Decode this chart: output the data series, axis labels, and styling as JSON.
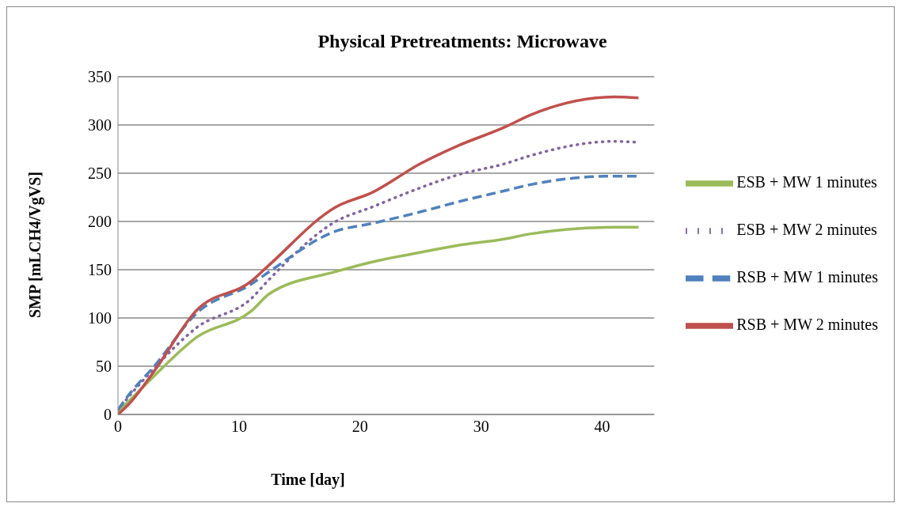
{
  "chart_data": {
    "type": "line",
    "title": "Physical Pretreatments: Microwave",
    "xlabel": "Time [day]",
    "ylabel": "SMP [mLCH4/VgVS]",
    "x": [
      0,
      1,
      3,
      6.5,
      11,
      12.5,
      18,
      21,
      25,
      28,
      32,
      34,
      41,
      43
    ],
    "series": [
      {
        "name": "ESB + MW 1 minutes",
        "color": "#9bbb59",
        "line_style": "solid",
        "values": [
          3,
          15,
          40,
          80,
          107,
          125,
          148,
          158,
          168,
          175,
          182,
          187,
          194,
          194
        ]
      },
      {
        "name": "ESB + MW 2 minutes",
        "color": "#8064a2",
        "line_style": "dotted",
        "values": [
          5,
          20,
          48,
          90,
          120,
          140,
          200,
          215,
          235,
          248,
          260,
          268,
          283,
          282
        ]
      },
      {
        "name": "RSB + MW 1 minutes",
        "color": "#4f81bd",
        "line_style": "dashed",
        "values": [
          5,
          22,
          50,
          105,
          135,
          148,
          190,
          198,
          210,
          220,
          232,
          238,
          247,
          247
        ]
      },
      {
        "name": "RSB + MW 2 minutes",
        "color": "#c0504d",
        "line_style": "solid",
        "values": [
          0,
          12,
          45,
          108,
          138,
          155,
          215,
          230,
          260,
          278,
          298,
          310,
          329,
          328
        ]
      }
    ],
    "xlim": [
      0,
      44.3
    ],
    "xticks": [
      0,
      10,
      20,
      30,
      40
    ],
    "ylim": [
      0,
      350
    ],
    "yticks": [
      0,
      50,
      100,
      150,
      200,
      250,
      300,
      350
    ],
    "grid": "y",
    "legend": "right",
    "marker": "none"
  }
}
